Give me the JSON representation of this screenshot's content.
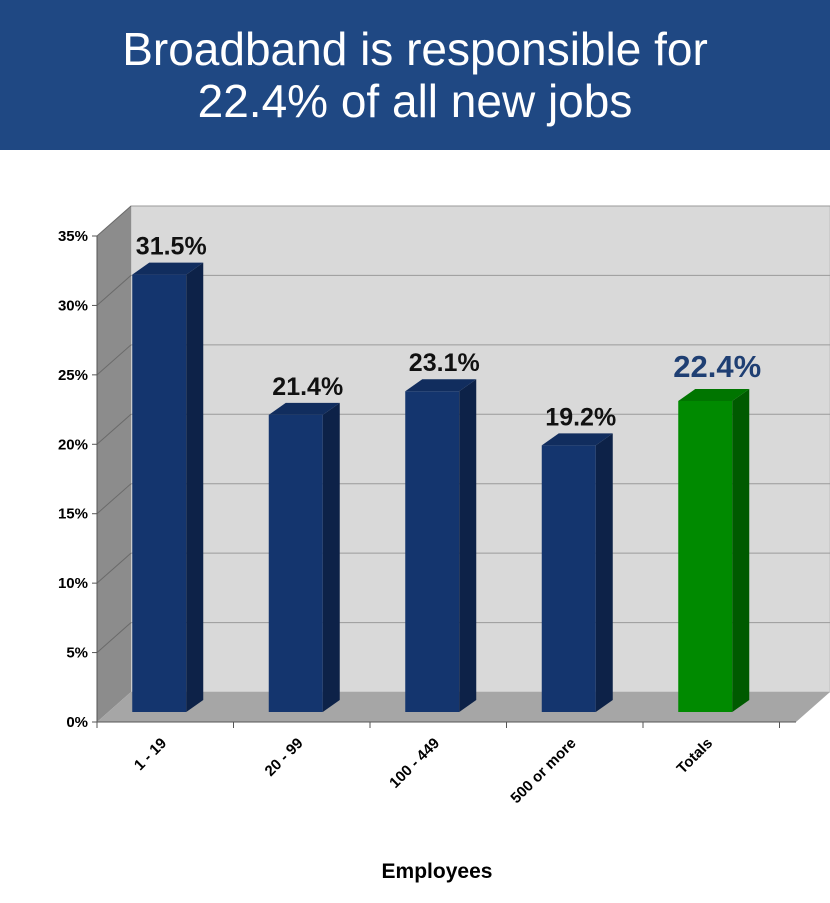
{
  "title": {
    "line1": "Broadband is responsible for",
    "line2": "22.4% of all new jobs"
  },
  "colors": {
    "banner": "#1f4883",
    "bar": "#14356e",
    "highlight_bar": "#008a00",
    "highlight_label": "#1f3f73"
  },
  "chart_data": {
    "type": "bar",
    "categories": [
      "1 - 19",
      "20 - 99",
      "100 - 449",
      "500 or more",
      "Totals"
    ],
    "values": [
      31.5,
      21.4,
      23.1,
      19.2,
      22.4
    ],
    "data_labels": [
      "31.5%",
      "21.4%",
      "23.1%",
      "19.2%",
      "22.4%"
    ],
    "highlight_index": 4,
    "xlabel": "Employees",
    "ylabel": "",
    "ylim": [
      0,
      35
    ],
    "yticks": [
      0,
      5,
      10,
      15,
      20,
      25,
      30,
      35
    ],
    "ytick_labels": [
      "0%",
      "5%",
      "10%",
      "15%",
      "20%",
      "25%",
      "30%",
      "35%"
    ],
    "grid": true,
    "legend": "none"
  }
}
